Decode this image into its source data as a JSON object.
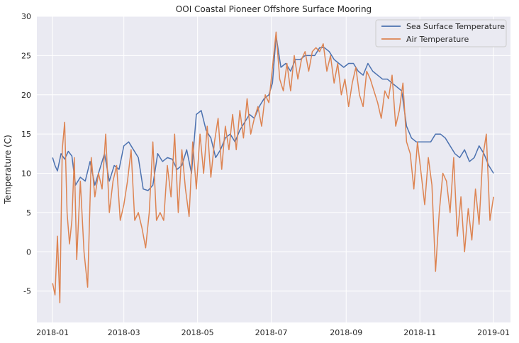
{
  "chart_data": {
    "type": "line",
    "title": "OOI Coastal Pioneer Offshore Surface Mooring",
    "xlabel": "",
    "ylabel": "Temperature (C)",
    "xlim": [
      "2017-12-19",
      "2019-01-15"
    ],
    "ylim": [
      -9,
      30
    ],
    "x_ticks": [
      "2018-01",
      "2018-03",
      "2018-05",
      "2018-07",
      "2018-09",
      "2018-11",
      "2019-01"
    ],
    "x_tick_dates": [
      "2018-01-01",
      "2018-03-01",
      "2018-05-01",
      "2018-07-01",
      "2018-09-01",
      "2018-11-01",
      "2019-01-01"
    ],
    "y_ticks": [
      -5,
      0,
      5,
      10,
      15,
      20,
      25,
      30
    ],
    "grid": true,
    "legend_position": "top-right",
    "series": [
      {
        "name": "Sea Surface Temperature",
        "color": "#4c72b0",
        "x": [
          "2018-01-01",
          "2018-01-03",
          "2018-01-05",
          "2018-01-08",
          "2018-01-11",
          "2018-01-14",
          "2018-01-17",
          "2018-01-20",
          "2018-01-24",
          "2018-01-28",
          "2018-02-01",
          "2018-02-05",
          "2018-02-09",
          "2018-02-13",
          "2018-02-17",
          "2018-02-21",
          "2018-02-25",
          "2018-03-01",
          "2018-03-05",
          "2018-03-09",
          "2018-03-13",
          "2018-03-17",
          "2018-03-21",
          "2018-03-25",
          "2018-03-29",
          "2018-04-02",
          "2018-04-06",
          "2018-04-10",
          "2018-04-14",
          "2018-04-18",
          "2018-04-22",
          "2018-04-26",
          "2018-04-30",
          "2018-05-04",
          "2018-05-08",
          "2018-05-12",
          "2018-05-16",
          "2018-05-20",
          "2018-05-24",
          "2018-05-28",
          "2018-06-01",
          "2018-06-05",
          "2018-06-09",
          "2018-06-13",
          "2018-06-17",
          "2018-06-21",
          "2018-06-25",
          "2018-06-29",
          "2018-07-02",
          "2018-07-05",
          "2018-07-09",
          "2018-07-13",
          "2018-07-17",
          "2018-07-21",
          "2018-07-25",
          "2018-07-29",
          "2018-08-02",
          "2018-08-06",
          "2018-08-10",
          "2018-08-14",
          "2018-08-18",
          "2018-08-22",
          "2018-08-26",
          "2018-08-30",
          "2018-09-03",
          "2018-09-07",
          "2018-09-11",
          "2018-09-15",
          "2018-09-19",
          "2018-09-23",
          "2018-09-27",
          "2018-10-01",
          "2018-10-05",
          "2018-10-09",
          "2018-10-13",
          "2018-10-17",
          "2018-10-21",
          "2018-10-25",
          "2018-10-29",
          "2018-11-02",
          "2018-11-06",
          "2018-11-10",
          "2018-11-14",
          "2018-11-18",
          "2018-11-22",
          "2018-11-26",
          "2018-11-30",
          "2018-12-04",
          "2018-12-08",
          "2018-12-12",
          "2018-12-16",
          "2018-12-20",
          "2018-12-24",
          "2018-12-28",
          "2019-01-01"
        ],
        "y": [
          12.0,
          11.0,
          10.3,
          12.5,
          11.8,
          12.8,
          12.2,
          8.5,
          9.5,
          9.0,
          11.5,
          8.5,
          10.5,
          12.5,
          9.0,
          11.0,
          10.5,
          13.5,
          14.0,
          13.0,
          12.0,
          8.0,
          7.8,
          8.5,
          12.5,
          11.5,
          12.0,
          11.8,
          10.5,
          11.0,
          13.0,
          10.0,
          17.5,
          18.0,
          15.5,
          14.5,
          12.0,
          13.0,
          14.5,
          15.0,
          14.0,
          15.5,
          16.5,
          17.5,
          17.0,
          18.5,
          19.5,
          20.0,
          21.5,
          27.5,
          23.5,
          24.0,
          23.0,
          24.5,
          24.5,
          25.0,
          25.0,
          25.0,
          26.0,
          26.0,
          25.5,
          24.5,
          24.0,
          23.5,
          24.0,
          24.0,
          23.0,
          22.5,
          24.0,
          23.0,
          22.5,
          22.0,
          22.0,
          21.5,
          21.0,
          20.5,
          16.0,
          14.5,
          14.0,
          14.0,
          14.0,
          14.0,
          15.0,
          15.0,
          14.5,
          13.5,
          12.5,
          12.0,
          13.0,
          11.5,
          12.0,
          13.5,
          12.5,
          11.0,
          10.0
        ]
      },
      {
        "name": "Air Temperature",
        "color": "#dd8452",
        "x": [
          "2018-01-01",
          "2018-01-03",
          "2018-01-05",
          "2018-01-07",
          "2018-01-09",
          "2018-01-11",
          "2018-01-13",
          "2018-01-15",
          "2018-01-17",
          "2018-01-19",
          "2018-01-21",
          "2018-01-24",
          "2018-01-27",
          "2018-01-30",
          "2018-02-02",
          "2018-02-05",
          "2018-02-08",
          "2018-02-11",
          "2018-02-14",
          "2018-02-17",
          "2018-02-20",
          "2018-02-23",
          "2018-02-26",
          "2018-03-01",
          "2018-03-04",
          "2018-03-07",
          "2018-03-10",
          "2018-03-13",
          "2018-03-16",
          "2018-03-19",
          "2018-03-22",
          "2018-03-25",
          "2018-03-28",
          "2018-03-31",
          "2018-04-03",
          "2018-04-06",
          "2018-04-09",
          "2018-04-12",
          "2018-04-15",
          "2018-04-18",
          "2018-04-21",
          "2018-04-24",
          "2018-04-27",
          "2018-04-30",
          "2018-05-03",
          "2018-05-06",
          "2018-05-09",
          "2018-05-12",
          "2018-05-15",
          "2018-05-18",
          "2018-05-21",
          "2018-05-24",
          "2018-05-27",
          "2018-05-30",
          "2018-06-02",
          "2018-06-05",
          "2018-06-08",
          "2018-06-11",
          "2018-06-14",
          "2018-06-17",
          "2018-06-20",
          "2018-06-23",
          "2018-06-26",
          "2018-06-29",
          "2018-07-02",
          "2018-07-05",
          "2018-07-08",
          "2018-07-11",
          "2018-07-14",
          "2018-07-17",
          "2018-07-20",
          "2018-07-23",
          "2018-07-26",
          "2018-07-29",
          "2018-08-01",
          "2018-08-04",
          "2018-08-07",
          "2018-08-10",
          "2018-08-13",
          "2018-08-16",
          "2018-08-19",
          "2018-08-22",
          "2018-08-25",
          "2018-08-28",
          "2018-08-31",
          "2018-09-03",
          "2018-09-06",
          "2018-09-09",
          "2018-09-12",
          "2018-09-15",
          "2018-09-18",
          "2018-09-21",
          "2018-09-24",
          "2018-09-27",
          "2018-09-30",
          "2018-10-03",
          "2018-10-06",
          "2018-10-09",
          "2018-10-12",
          "2018-10-15",
          "2018-10-18",
          "2018-10-21",
          "2018-10-24",
          "2018-10-27",
          "2018-10-30",
          "2018-11-02",
          "2018-11-05",
          "2018-11-08",
          "2018-11-11",
          "2018-11-14",
          "2018-11-17",
          "2018-11-20",
          "2018-11-23",
          "2018-11-26",
          "2018-11-29",
          "2018-12-02",
          "2018-12-05",
          "2018-12-08",
          "2018-12-11",
          "2018-12-14",
          "2018-12-17",
          "2018-12-20",
          "2018-12-23",
          "2018-12-26",
          "2018-12-29",
          "2019-01-01"
        ],
        "y": [
          -4.0,
          -5.5,
          2.0,
          -6.5,
          13.0,
          16.5,
          5.0,
          1.0,
          4.0,
          12.0,
          -1.0,
          9.0,
          0.0,
          -4.5,
          12.0,
          7.0,
          10.0,
          8.0,
          15.0,
          5.0,
          9.0,
          11.0,
          4.0,
          6.0,
          9.0,
          13.0,
          4.0,
          5.0,
          3.0,
          0.5,
          5.0,
          14.0,
          4.0,
          5.0,
          4.0,
          11.0,
          7.0,
          15.0,
          5.0,
          13.0,
          8.0,
          4.5,
          14.0,
          8.0,
          15.0,
          10.0,
          16.0,
          9.5,
          14.0,
          17.0,
          10.5,
          16.0,
          13.0,
          17.5,
          13.0,
          18.0,
          14.5,
          19.5,
          15.0,
          17.0,
          18.5,
          16.0,
          20.0,
          19.0,
          23.5,
          28.0,
          22.0,
          20.5,
          24.0,
          20.5,
          25.0,
          22.0,
          24.5,
          25.5,
          23.0,
          25.5,
          26.0,
          25.5,
          26.5,
          23.0,
          25.0,
          21.5,
          24.0,
          20.0,
          22.0,
          18.5,
          21.5,
          23.5,
          20.0,
          18.5,
          23.0,
          22.0,
          20.5,
          19.0,
          17.0,
          20.5,
          19.5,
          22.5,
          16.0,
          18.0,
          21.5,
          14.0,
          12.5,
          8.0,
          14.0,
          10.0,
          6.0,
          12.0,
          8.5,
          -2.5,
          5.0,
          10.0,
          9.0,
          5.0,
          12.0,
          2.0,
          7.0,
          0.0,
          5.5,
          1.5,
          8.0,
          3.5,
          12.0,
          15.0,
          4.0,
          7.0
        ]
      }
    ]
  }
}
